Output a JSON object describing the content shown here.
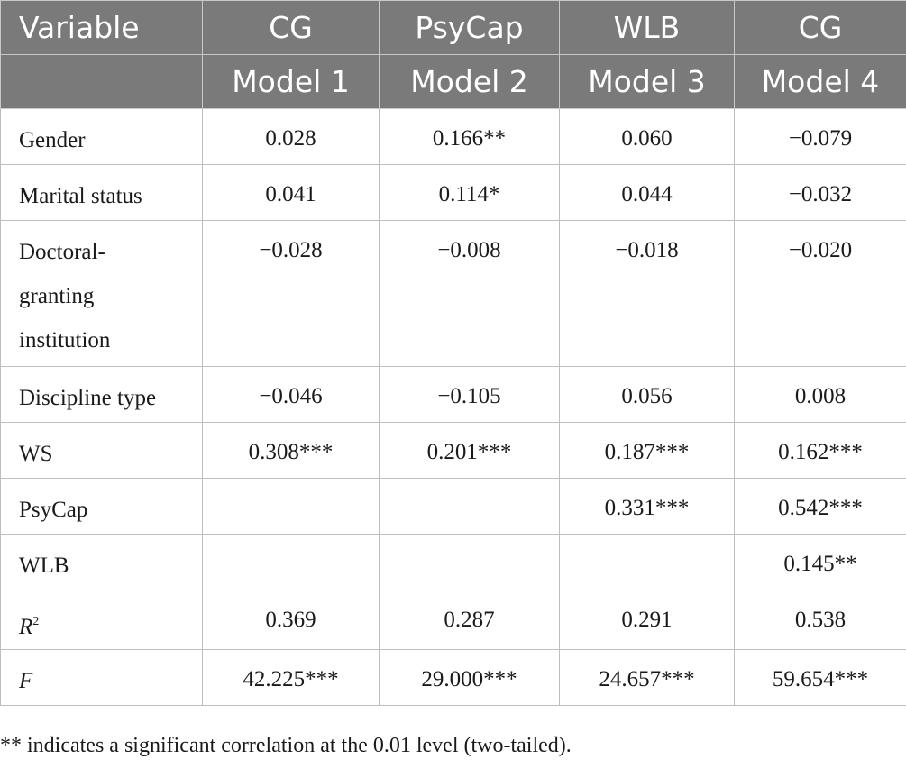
{
  "header": {
    "row1": [
      "Variable",
      "CG",
      "PsyCap",
      "WLB",
      "CG"
    ],
    "row2": [
      "Model 1",
      "Model 2",
      "Model 3",
      "Model 4"
    ]
  },
  "rows": [
    {
      "label": "Gender",
      "values": [
        "0.028",
        "0.166**",
        "0.060",
        "−0.079"
      ]
    },
    {
      "label": "Marital status",
      "values": [
        "0.041",
        "0.114*",
        "0.044",
        "−0.032"
      ]
    },
    {
      "label_lines": [
        "Doctoral-",
        "granting",
        "institution"
      ],
      "values": [
        "−0.028",
        "−0.008",
        "−0.018",
        "−0.020"
      ]
    },
    {
      "label": "Discipline type",
      "values": [
        "−0.046",
        "−0.105",
        "0.056",
        "0.008"
      ]
    },
    {
      "label": "WS",
      "values": [
        "0.308***",
        "0.201***",
        "0.187***",
        "0.162***"
      ]
    },
    {
      "label": "PsyCap",
      "values": [
        "",
        "",
        "0.331***",
        "0.542***"
      ]
    },
    {
      "label": "WLB",
      "values": [
        "",
        "",
        "",
        "0.145**"
      ]
    },
    {
      "label_base": "R",
      "label_sup": "2",
      "values": [
        "0.369",
        "0.287",
        "0.291",
        "0.538"
      ]
    },
    {
      "label": "F",
      "values": [
        "42.225***",
        "29.000***",
        "24.657***",
        "59.654***"
      ]
    }
  ],
  "footnote": "** indicates a significant correlation at the 0.01 level (two-tailed)."
}
